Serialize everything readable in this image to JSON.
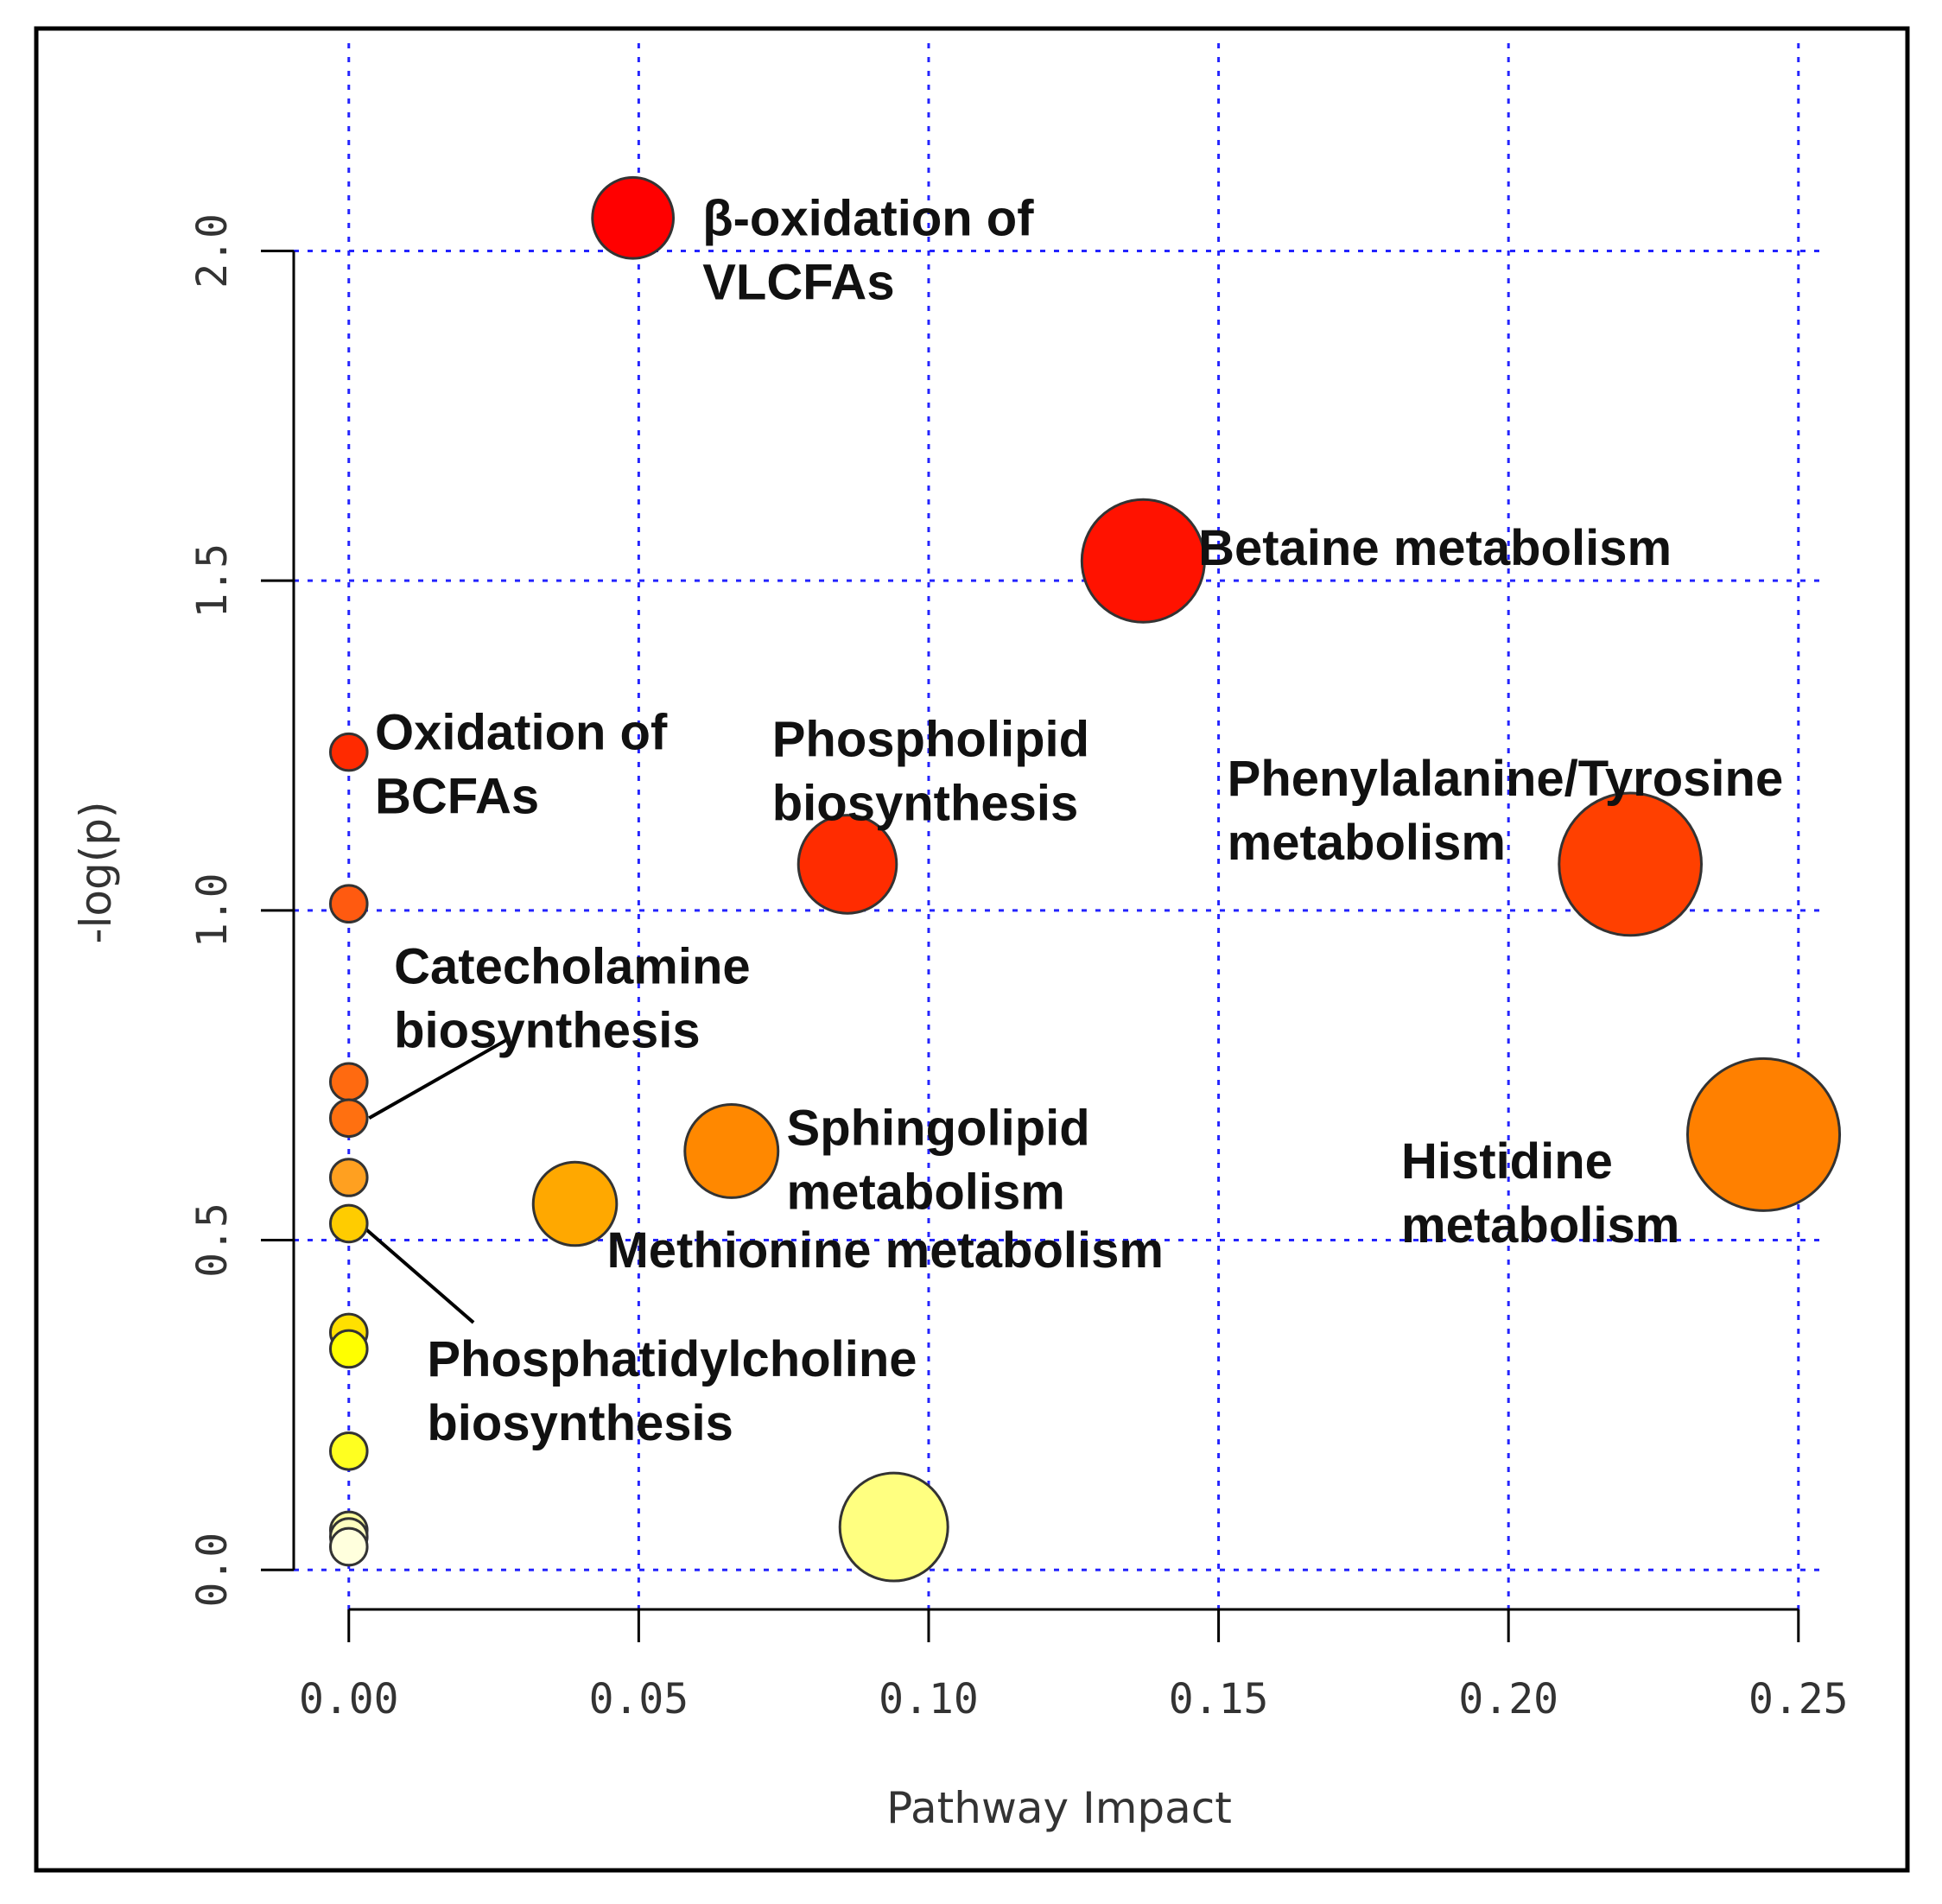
{
  "chart_data": {
    "type": "scatter",
    "title": "",
    "xlabel": "Pathway Impact",
    "ylabel": "-log(p)",
    "xlim": [
      -0.0095,
      0.2545
    ],
    "ylim": [
      -0.06,
      2.315
    ],
    "xticks": [
      0,
      0.05,
      0.1,
      0.15,
      0.2,
      0.25
    ],
    "xtick_labels": [
      "0.00",
      "0.05",
      "0.10",
      "0.15",
      "0.20",
      "0.25"
    ],
    "yticks": [
      0,
      0.5,
      1,
      1.5,
      2
    ],
    "ytick_labels": [
      "0.0",
      "0.5",
      "1.0",
      "1.5",
      "2.0"
    ],
    "grid": true,
    "grid_style": "dotted",
    "colors": {
      "grid": "#2424ff",
      "axis": "#000000",
      "frame": "#000000",
      "point_stroke": "#333333"
    },
    "points": [
      {
        "x": 0.049,
        "y": 2.05,
        "size": 0.33,
        "color": "#ff0000"
      },
      {
        "x": 0.137,
        "y": 1.53,
        "size": 0.5,
        "color": "#ff1200"
      },
      {
        "x": 0.0,
        "y": 1.24,
        "size": 0.15,
        "color": "#ff2a00"
      },
      {
        "x": 0.086,
        "y": 1.07,
        "size": 0.4,
        "color": "#ff2c00"
      },
      {
        "x": 0.221,
        "y": 1.07,
        "size": 0.58,
        "color": "#ff4000"
      },
      {
        "x": 0.0,
        "y": 1.01,
        "size": 0.15,
        "color": "#ff5a10"
      },
      {
        "x": 0.0,
        "y": 0.74,
        "size": 0.15,
        "color": "#ff6a10"
      },
      {
        "x": 0.0,
        "y": 0.685,
        "size": 0.15,
        "color": "#ff7010"
      },
      {
        "x": 0.244,
        "y": 0.66,
        "size": 0.62,
        "color": "#ff8000"
      },
      {
        "x": 0.066,
        "y": 0.635,
        "size": 0.38,
        "color": "#ff8800"
      },
      {
        "x": 0.0,
        "y": 0.595,
        "size": 0.15,
        "color": "#ffa020"
      },
      {
        "x": 0.039,
        "y": 0.555,
        "size": 0.34,
        "color": "#ffa800"
      },
      {
        "x": 0.0,
        "y": 0.525,
        "size": 0.15,
        "color": "#ffcc00"
      },
      {
        "x": 0.0,
        "y": 0.36,
        "size": 0.15,
        "color": "#ffe000"
      },
      {
        "x": 0.0,
        "y": 0.335,
        "size": 0.15,
        "color": "#ffff00"
      },
      {
        "x": 0.0,
        "y": 0.18,
        "size": 0.15,
        "color": "#ffff20"
      },
      {
        "x": 0.094,
        "y": 0.065,
        "size": 0.44,
        "color": "#ffff80"
      },
      {
        "x": 0.0,
        "y": 0.06,
        "size": 0.15,
        "color": "#ffffa0"
      },
      {
        "x": 0.0,
        "y": 0.05,
        "size": 0.15,
        "color": "#ffffc0"
      },
      {
        "x": 0.0,
        "y": 0.035,
        "size": 0.15,
        "color": "#ffffdd"
      }
    ],
    "annotations": [
      {
        "lines": [
          "β-oxidation of",
          "VLCFAs"
        ],
        "x": 0.061,
        "y": 2.05
      },
      {
        "lines": [
          "Betaine metabolism"
        ],
        "x": 0.1465,
        "y": 1.55
      },
      {
        "lines": [
          "Oxidation of",
          "BCFAs"
        ],
        "x": 0.0045,
        "y": 1.27
      },
      {
        "lines": [
          "Phospholipid",
          "biosynthesis"
        ],
        "x": 0.073,
        "y": 1.26
      },
      {
        "lines": [
          "Phenylalanine/Tyrosine",
          "metabolism"
        ],
        "x": 0.1515,
        "y": 1.2
      },
      {
        "lines": [
          "Catecholamine",
          "biosynthesis"
        ],
        "x": 0.0078,
        "y": 0.915
      },
      {
        "lines": [
          "Sphingolipid",
          "metabolism"
        ],
        "x": 0.0755,
        "y": 0.67
      },
      {
        "lines": [
          "Histidine",
          "metabolism"
        ],
        "x": 0.1815,
        "y": 0.62
      },
      {
        "lines": [
          "Methionine metabolism"
        ],
        "x": 0.0445,
        "y": 0.485
      },
      {
        "lines": [
          "Phosphatidylcholine",
          "biosynthesis"
        ],
        "x": 0.0135,
        "y": 0.32
      }
    ],
    "leader_lines": [
      {
        "from": [
          0.0275,
          0.805
        ],
        "to": [
          0.0035,
          0.685
        ]
      },
      {
        "from": [
          0.0215,
          0.375
        ],
        "to": [
          0.0025,
          0.52
        ]
      }
    ]
  }
}
